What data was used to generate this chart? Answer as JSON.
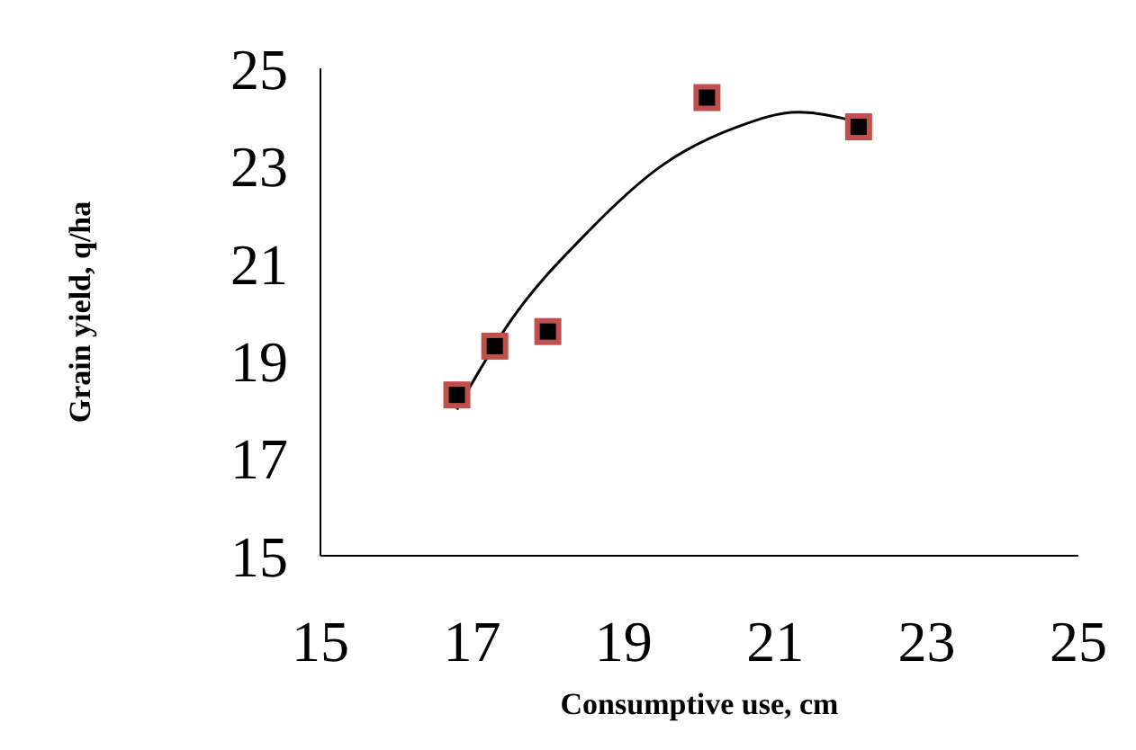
{
  "chart_data": {
    "type": "scatter",
    "xlabel": "Consumptive use, cm",
    "ylabel": "Grain yield, q/ha",
    "xlim": [
      15,
      25
    ],
    "xticks": [
      15,
      17,
      19,
      21,
      23,
      25
    ],
    "ylim": [
      15,
      25
    ],
    "yticks": [
      15,
      17,
      19,
      21,
      23,
      25
    ],
    "grid": false,
    "legend": false,
    "series": [
      {
        "marker": "square",
        "color": "#c0504d",
        "x": [
          16.8,
          17.3,
          18.0,
          20.1,
          22.1
        ],
        "values": [
          18.3,
          19.3,
          19.6,
          24.4,
          23.8
        ]
      },
      {
        "type": "line",
        "marker": "none",
        "color": "#000000",
        "x": [
          16.8,
          17.5,
          18.5,
          19.5,
          20.5,
          21.3,
          22.1
        ],
        "values": [
          18.0,
          19.8,
          21.6,
          23.0,
          23.8,
          24.1,
          23.9
        ]
      }
    ]
  }
}
